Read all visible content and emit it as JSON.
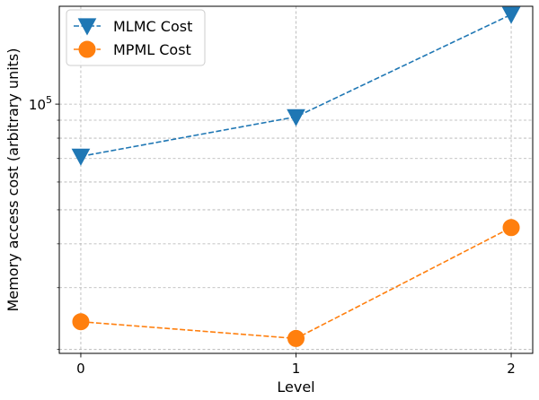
{
  "chart_data": {
    "type": "line",
    "xlabel": "Level",
    "ylabel": "Memory access cost (arbitrary units)",
    "yscale": "log",
    "x": [
      0,
      1,
      2
    ],
    "xticks": [
      "0",
      "1",
      "2"
    ],
    "ylim": [
      19500,
      190000
    ],
    "yticks_major": [
      {
        "value": 100000,
        "base": "10",
        "exp": "5"
      }
    ],
    "yticks_minor": [
      20000,
      30000,
      40000,
      50000,
      60000,
      70000,
      80000,
      90000
    ],
    "grid": true,
    "legend_position": "upper-left",
    "series": [
      {
        "name": "MLMC Cost",
        "values": [
          71000,
          92000,
          180000
        ],
        "color": "#1f77b4",
        "marker": "triangle-down",
        "linestyle": "dashed"
      },
      {
        "name": "MPML Cost",
        "values": [
          24000,
          21500,
          44500
        ],
        "color": "#ff7f0e",
        "marker": "circle",
        "linestyle": "dashed"
      }
    ]
  }
}
